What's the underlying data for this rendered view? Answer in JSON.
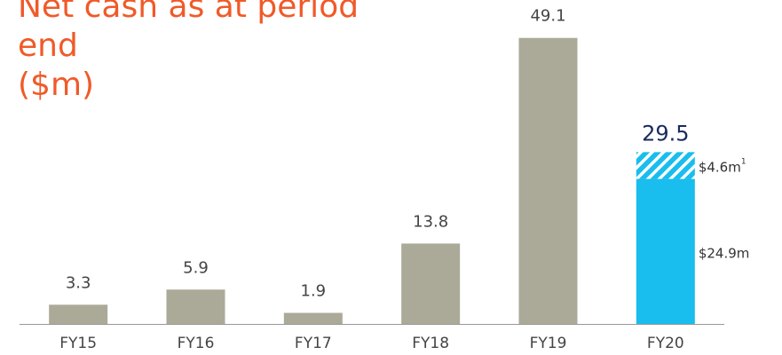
{
  "chart_data": {
    "type": "bar",
    "title_lines": [
      "Net cash as at period",
      "end",
      "($m)"
    ],
    "categories": [
      "FY15",
      "FY16",
      "FY17",
      "FY18",
      "FY19",
      "FY20"
    ],
    "values": [
      3.3,
      5.9,
      1.9,
      13.8,
      49.1,
      29.5
    ],
    "color": "#abaa99",
    "label_color": "#444444",
    "total_label_color": "#1a2a5e",
    "segments": [
      {
        "value": 24.9,
        "label": "$24.9m",
        "color": "#19bdee"
      },
      {
        "value": 4.6,
        "label": "$4.6m",
        "footnote": "1",
        "color": "#19bdee",
        "pattern": "hatch"
      }
    ],
    "ylim": [
      0,
      55
    ]
  }
}
